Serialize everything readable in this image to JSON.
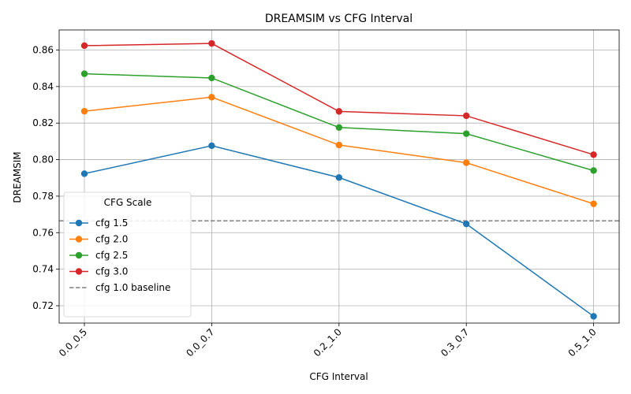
{
  "chart_data": {
    "type": "line",
    "title": "DREAMSIM vs CFG Interval",
    "xlabel": "CFG Interval",
    "ylabel": "DREAMSIM",
    "categories": [
      "0.0_0.5",
      "0.0_0.7",
      "0.2_1.0",
      "0.3_0.7",
      "0.5_1.0"
    ],
    "ylim": [
      0.7105,
      0.871
    ],
    "yticks": [
      0.72,
      0.74,
      0.76,
      0.78,
      0.8,
      0.82,
      0.84,
      0.86
    ],
    "ytick_labels": [
      "0.72",
      "0.74",
      "0.76",
      "0.78",
      "0.80",
      "0.82",
      "0.84",
      "0.86"
    ],
    "grid": true,
    "legend": {
      "title": "CFG Scale",
      "placement": "lower-left"
    },
    "series": [
      {
        "name": "cfg 1.5",
        "color": "#1f77b4",
        "values": [
          0.7923,
          0.8076,
          0.7902,
          0.7648,
          0.7142
        ]
      },
      {
        "name": "cfg 2.0",
        "color": "#ff7f0e",
        "values": [
          0.8265,
          0.8342,
          0.808,
          0.7983,
          0.7758
        ]
      },
      {
        "name": "cfg 2.5",
        "color": "#2ca02c",
        "values": [
          0.847,
          0.8447,
          0.8176,
          0.8142,
          0.794
        ]
      },
      {
        "name": "cfg 3.0",
        "color": "#d62728",
        "values": [
          0.8624,
          0.8636,
          0.8264,
          0.824,
          0.8027
        ]
      }
    ],
    "baseline": {
      "name": "cfg 1.0 baseline",
      "value": 0.7665,
      "color": "#808080",
      "style": "dashed"
    }
  }
}
